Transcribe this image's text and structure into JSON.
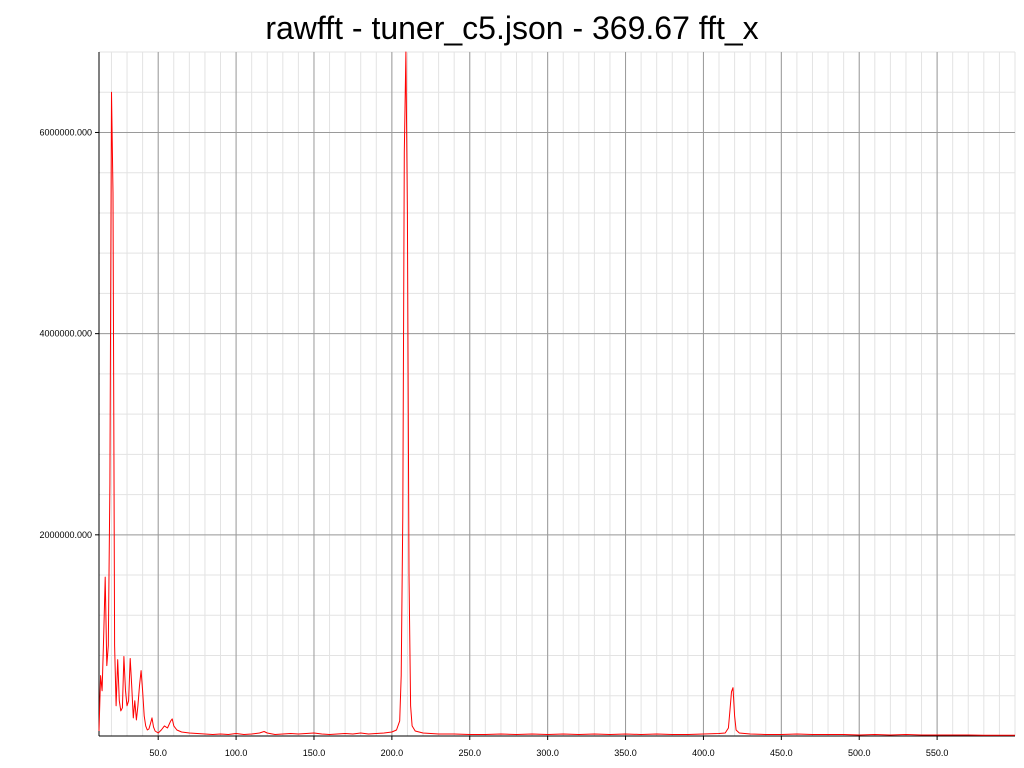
{
  "chart_data": {
    "type": "line",
    "title": "rawfft - tuner_c5.json - 369.67 fft_x",
    "xlabel": "",
    "ylabel": "",
    "xlim": [
      12,
      600
    ],
    "ylim": [
      0,
      6800000
    ],
    "x_ticks": [
      50,
      100,
      150,
      200,
      250,
      300,
      350,
      400,
      450,
      500,
      550
    ],
    "x_tick_labels": [
      "50.0",
      "100.0",
      "150.0",
      "200.0",
      "250.0",
      "300.0",
      "350.0",
      "400.0",
      "450.0",
      "500.0",
      "550.0"
    ],
    "y_ticks": [
      2000000,
      4000000,
      6000000
    ],
    "y_tick_labels": [
      "2000000.000",
      "4000000.000",
      "6000000.000"
    ],
    "grid": true,
    "legend": "none",
    "series": [
      {
        "color": "#ff0000",
        "points": [
          [
            12,
            50000
          ],
          [
            13,
            600000
          ],
          [
            14,
            450000
          ],
          [
            15,
            1000000
          ],
          [
            16,
            1580000
          ],
          [
            17,
            700000
          ],
          [
            18,
            900000
          ],
          [
            19,
            2500000
          ],
          [
            20,
            6400000
          ],
          [
            21,
            5400000
          ],
          [
            22,
            900000
          ],
          [
            23,
            300000
          ],
          [
            24,
            760000
          ],
          [
            25,
            350000
          ],
          [
            26,
            250000
          ],
          [
            27,
            280000
          ],
          [
            28,
            790000
          ],
          [
            29,
            450000
          ],
          [
            30,
            300000
          ],
          [
            31,
            350000
          ],
          [
            32,
            770000
          ],
          [
            33,
            500000
          ],
          [
            34,
            180000
          ],
          [
            35,
            350000
          ],
          [
            36,
            160000
          ],
          [
            37,
            300000
          ],
          [
            38,
            500000
          ],
          [
            39,
            650000
          ],
          [
            40,
            450000
          ],
          [
            41,
            200000
          ],
          [
            42,
            100000
          ],
          [
            43,
            60000
          ],
          [
            44,
            70000
          ],
          [
            45,
            120000
          ],
          [
            46,
            180000
          ],
          [
            47,
            90000
          ],
          [
            48,
            50000
          ],
          [
            50,
            30000
          ],
          [
            52,
            60000
          ],
          [
            54,
            100000
          ],
          [
            56,
            80000
          ],
          [
            58,
            150000
          ],
          [
            59,
            170000
          ],
          [
            60,
            100000
          ],
          [
            62,
            60000
          ],
          [
            65,
            40000
          ],
          [
            70,
            30000
          ],
          [
            75,
            25000
          ],
          [
            80,
            20000
          ],
          [
            85,
            15000
          ],
          [
            90,
            20000
          ],
          [
            95,
            15000
          ],
          [
            100,
            25000
          ],
          [
            105,
            15000
          ],
          [
            110,
            20000
          ],
          [
            115,
            30000
          ],
          [
            118,
            45000
          ],
          [
            120,
            30000
          ],
          [
            125,
            15000
          ],
          [
            130,
            20000
          ],
          [
            135,
            25000
          ],
          [
            140,
            20000
          ],
          [
            145,
            25000
          ],
          [
            150,
            30000
          ],
          [
            155,
            20000
          ],
          [
            160,
            15000
          ],
          [
            165,
            20000
          ],
          [
            170,
            25000
          ],
          [
            175,
            20000
          ],
          [
            180,
            30000
          ],
          [
            185,
            20000
          ],
          [
            190,
            25000
          ],
          [
            195,
            30000
          ],
          [
            200,
            40000
          ],
          [
            203,
            60000
          ],
          [
            205,
            150000
          ],
          [
            206,
            600000
          ],
          [
            207,
            2200000
          ],
          [
            208,
            5800000
          ],
          [
            209,
            6800000
          ],
          [
            210,
            5200000
          ],
          [
            211,
            1600000
          ],
          [
            212,
            300000
          ],
          [
            213,
            100000
          ],
          [
            215,
            50000
          ],
          [
            220,
            30000
          ],
          [
            230,
            20000
          ],
          [
            240,
            20000
          ],
          [
            250,
            15000
          ],
          [
            260,
            15000
          ],
          [
            270,
            20000
          ],
          [
            280,
            15000
          ],
          [
            290,
            20000
          ],
          [
            300,
            15000
          ],
          [
            310,
            20000
          ],
          [
            320,
            15000
          ],
          [
            330,
            20000
          ],
          [
            340,
            15000
          ],
          [
            350,
            20000
          ],
          [
            360,
            15000
          ],
          [
            370,
            20000
          ],
          [
            380,
            15000
          ],
          [
            390,
            15000
          ],
          [
            400,
            20000
          ],
          [
            410,
            25000
          ],
          [
            414,
            30000
          ],
          [
            416,
            80000
          ],
          [
            417,
            250000
          ],
          [
            418,
            440000
          ],
          [
            419,
            480000
          ],
          [
            420,
            200000
          ],
          [
            421,
            60000
          ],
          [
            423,
            30000
          ],
          [
            430,
            20000
          ],
          [
            440,
            15000
          ],
          [
            450,
            15000
          ],
          [
            460,
            20000
          ],
          [
            470,
            15000
          ],
          [
            480,
            15000
          ],
          [
            490,
            15000
          ],
          [
            500,
            10000
          ],
          [
            510,
            15000
          ],
          [
            520,
            10000
          ],
          [
            530,
            15000
          ],
          [
            540,
            10000
          ],
          [
            550,
            10000
          ],
          [
            560,
            10000
          ],
          [
            570,
            10000
          ],
          [
            580,
            8000
          ],
          [
            590,
            8000
          ],
          [
            600,
            8000
          ]
        ]
      }
    ]
  }
}
